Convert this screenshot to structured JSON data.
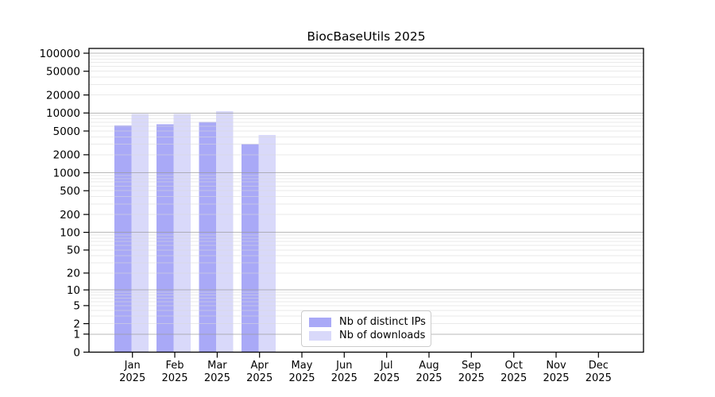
{
  "title": "BiocBaseUtils 2025",
  "legend": {
    "items": [
      {
        "label": "Nb of distinct IPs",
        "color": "#a9a9f7"
      },
      {
        "label": "Nb of downloads",
        "color": "#d9d9fa"
      }
    ]
  },
  "chart_data": {
    "type": "bar",
    "title": "BiocBaseUtils 2025",
    "categories": [
      "Jan 2025",
      "Feb 2025",
      "Mar 2025",
      "Apr 2025",
      "May 2025",
      "Jun 2025",
      "Jul 2025",
      "Aug 2025",
      "Sep 2025",
      "Oct 2025",
      "Nov 2025",
      "Dec 2025"
    ],
    "series": [
      {
        "name": "Nb of distinct IPs",
        "color": "#a9a9f7",
        "values": [
          6200,
          6500,
          7100,
          3000,
          0,
          0,
          0,
          0,
          0,
          0,
          0,
          0
        ]
      },
      {
        "name": "Nb of downloads",
        "color": "#d9d9fa",
        "values": [
          9600,
          9600,
          10700,
          4300,
          0,
          0,
          0,
          0,
          0,
          0,
          0,
          0
        ]
      }
    ],
    "y_ticks": [
      0,
      1,
      2,
      5,
      10,
      20,
      50,
      100,
      200,
      500,
      1000,
      2000,
      5000,
      10000,
      20000,
      50000,
      100000
    ],
    "y_scale": "log10(1+value)",
    "ylim": [
      0,
      100000
    ],
    "xlabel": "",
    "ylabel": "",
    "grid": true,
    "legend_position": "inside lower-center"
  }
}
